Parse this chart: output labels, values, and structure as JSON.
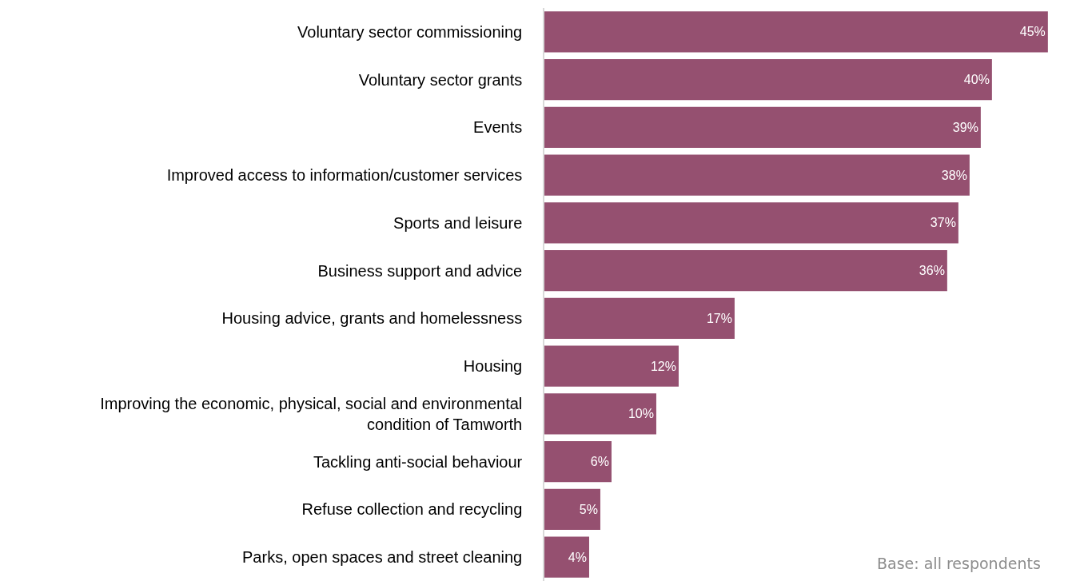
{
  "chart_data": {
    "type": "bar",
    "orientation": "horizontal",
    "categories": [
      "Voluntary sector commissioning",
      "Voluntary sector grants",
      "Events",
      "Improved access to information/customer services",
      "Sports and leisure",
      "Business support and advice",
      "Housing advice, grants and homelessness",
      "Housing",
      "Improving the economic, physical, social and environmental condition of Tamworth",
      "Tackling anti-social behaviour",
      "Refuse collection and recycling",
      "Parks, open spaces and street cleaning"
    ],
    "values": [
      45,
      40,
      39,
      38,
      37,
      36,
      17,
      12,
      10,
      6,
      5,
      4
    ],
    "value_labels": [
      "45%",
      "40%",
      "39%",
      "38%",
      "37%",
      "36%",
      "17%",
      "12%",
      "10%",
      "6%",
      "5%",
      "4%"
    ],
    "color": "#955070",
    "tick_labels": "y",
    "grid": false,
    "annotations": [
      "Base: all respondents"
    ]
  }
}
